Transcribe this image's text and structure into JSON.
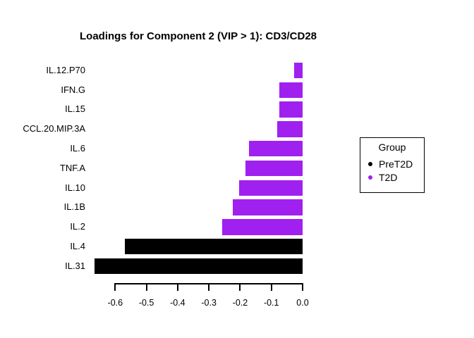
{
  "chart_data": {
    "type": "bar",
    "orientation": "horizontal",
    "title": "Loadings for Component 2 (VIP > 1): CD3/CD28",
    "categories": [
      "IL.12.P70",
      "IFN.G",
      "IL.15",
      "CCL.20.MIP.3A",
      "IL.6",
      "TNF.A",
      "IL.10",
      "IL.1B",
      "IL.2",
      "IL.4",
      "IL.31"
    ],
    "values": [
      -0.026,
      -0.075,
      -0.075,
      -0.081,
      -0.171,
      -0.184,
      -0.204,
      -0.224,
      -0.258,
      -0.57,
      -0.666
    ],
    "groups": [
      "T2D",
      "T2D",
      "T2D",
      "T2D",
      "T2D",
      "T2D",
      "T2D",
      "T2D",
      "T2D",
      "PreT2D",
      "PreT2D"
    ],
    "group_colors": {
      "PreT2D": "#000000",
      "T2D": "#A020F0"
    },
    "xlabel": "",
    "ylabel": "",
    "xlim": [
      -0.67,
      0.0
    ],
    "x_ticks": [
      -0.6,
      -0.5,
      -0.4,
      -0.3,
      -0.2,
      -0.1,
      0.0
    ],
    "x_tick_labels": [
      "-0.6",
      "-0.5",
      "-0.4",
      "-0.3",
      "-0.2",
      "-0.1",
      "0.0"
    ],
    "grid": false,
    "legend": {
      "title": "Group",
      "position": "right",
      "entries": [
        {
          "label": "PreT2D",
          "color": "#000000"
        },
        {
          "label": "T2D",
          "color": "#A020F0"
        }
      ]
    }
  }
}
